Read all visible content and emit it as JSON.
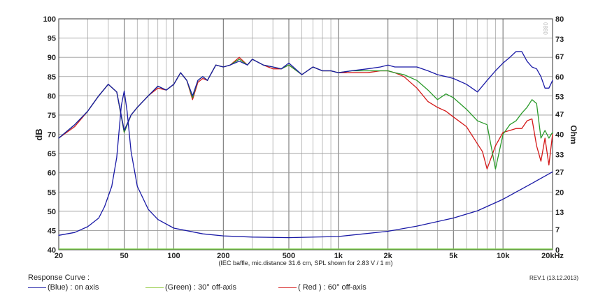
{
  "chart_data": {
    "type": "line",
    "xscale": "log",
    "xlim": [
      20,
      20000
    ],
    "ylim": [
      40,
      100
    ],
    "ylabel": "dB",
    "y2label": "Ohm",
    "y2lim": [
      0,
      80
    ],
    "xlabel": "(IEC baffle, mic.distance 31.6 cm, SPL shown for 2.83 V / 1 m)",
    "x_ticks": [
      20,
      50,
      100,
      200,
      500,
      1000,
      2000,
      5000,
      10000,
      20000
    ],
    "x_tick_labels": [
      "20",
      "50",
      "100",
      "200",
      "500",
      "1k",
      "2k",
      "5k",
      "10k",
      "20kHz"
    ],
    "y_ticks": [
      40,
      45,
      50,
      55,
      60,
      65,
      70,
      75,
      80,
      85,
      90,
      95,
      100
    ],
    "y2_ticks": [
      0,
      7,
      13,
      20,
      27,
      33,
      40,
      47,
      53,
      60,
      67,
      73,
      80
    ],
    "grid": true,
    "watermark": "0880",
    "series": [
      {
        "name": "(Blue) : on axis",
        "color": "#1a1aa6",
        "axis": "dB",
        "x": [
          20,
          25,
          30,
          35,
          40,
          45,
          50,
          55,
          60,
          70,
          80,
          90,
          100,
          110,
          120,
          130,
          140,
          150,
          160,
          180,
          200,
          220,
          250,
          280,
          300,
          350,
          400,
          450,
          500,
          600,
          700,
          800,
          900,
          1000,
          1200,
          1500,
          1800,
          2000,
          2200,
          2500,
          3000,
          3500,
          4000,
          4500,
          5000,
          6000,
          7000,
          8000,
          9000,
          10000,
          11000,
          12000,
          13000,
          14000,
          15000,
          16000,
          17000,
          18000,
          19000,
          20000
        ],
        "y": [
          69,
          72.5,
          76,
          80,
          83,
          81,
          71,
          75,
          77,
          80,
          82.5,
          81.5,
          83,
          86,
          84,
          80,
          84,
          85,
          84,
          88,
          87.5,
          88,
          89,
          88,
          89.5,
          88,
          87.5,
          87,
          88.5,
          85.5,
          87.5,
          86.5,
          86.5,
          86,
          86.5,
          87,
          87.5,
          88,
          87.5,
          87.5,
          87.5,
          86.5,
          85.5,
          85,
          84.5,
          83,
          81,
          84,
          86.5,
          88.5,
          90,
          91.5,
          91.5,
          89,
          87.5,
          87,
          85,
          82,
          82,
          84
        ]
      },
      {
        "name": "(Green) : 30° off-axis",
        "color": "#2a9a2a",
        "axis": "dB",
        "x": [
          20,
          25,
          30,
          35,
          40,
          45,
          50,
          55,
          60,
          70,
          80,
          90,
          100,
          110,
          120,
          130,
          140,
          150,
          160,
          180,
          200,
          220,
          250,
          280,
          300,
          350,
          400,
          450,
          500,
          600,
          700,
          800,
          900,
          1000,
          1200,
          1500,
          1800,
          2000,
          2200,
          2500,
          3000,
          3500,
          4000,
          4500,
          5000,
          6000,
          7000,
          8000,
          9000,
          10000,
          11000,
          12000,
          13000,
          14000,
          15000,
          16000,
          17000,
          18000,
          19000,
          20000
        ],
        "y": [
          69,
          72.5,
          76,
          80,
          83,
          81,
          70.5,
          75,
          77,
          80,
          82.5,
          81.5,
          83,
          86,
          84,
          79.5,
          84,
          85,
          84,
          88,
          87.5,
          88,
          89.5,
          88,
          89.5,
          88,
          87.5,
          87,
          88,
          85.5,
          87.5,
          86.5,
          86.5,
          86,
          86.5,
          86.5,
          86.5,
          86.5,
          86,
          85.5,
          84,
          81.5,
          79,
          80.5,
          79.5,
          76.5,
          73.5,
          72.5,
          61,
          70,
          72.5,
          73.5,
          75.5,
          77,
          79,
          78,
          69,
          71,
          69,
          70.5
        ]
      },
      {
        "name": "( Red ) : 60° off-axis",
        "color": "#d41818",
        "axis": "dB",
        "x": [
          20,
          25,
          30,
          35,
          40,
          45,
          50,
          55,
          60,
          70,
          80,
          90,
          100,
          110,
          120,
          130,
          140,
          150,
          160,
          180,
          200,
          220,
          250,
          280,
          300,
          350,
          400,
          450,
          500,
          600,
          700,
          800,
          900,
          1000,
          1200,
          1500,
          1800,
          2000,
          2200,
          2500,
          3000,
          3500,
          4000,
          4500,
          5000,
          6000,
          7000,
          7500,
          8000,
          9000,
          10000,
          11000,
          12000,
          13000,
          14000,
          15000,
          16000,
          17000,
          18000,
          19000,
          20000
        ],
        "y": [
          69,
          72,
          76,
          80,
          83,
          81,
          70.5,
          75,
          77,
          80,
          82,
          81.5,
          83,
          86,
          84,
          79,
          83.5,
          84.5,
          84,
          88,
          87.5,
          88,
          90,
          88,
          89.5,
          88,
          87,
          87,
          88,
          85.5,
          87.5,
          86.5,
          86.5,
          86,
          86,
          86,
          86.5,
          86.5,
          86,
          85,
          82,
          78.5,
          77,
          76,
          74.5,
          72,
          67.5,
          65.5,
          61,
          67,
          70.5,
          71,
          71.5,
          71.5,
          73.5,
          74,
          67,
          63,
          69,
          62,
          70
        ]
      },
      {
        "name": "impedance",
        "color": "#1a1aa6",
        "axis": "Ohm",
        "x": [
          20,
          25,
          30,
          35,
          38,
          42,
          45,
          48,
          50,
          52,
          55,
          60,
          70,
          80,
          100,
          150,
          200,
          300,
          500,
          1000,
          2000,
          3000,
          5000,
          7000,
          10000,
          15000,
          20000
        ],
        "y": [
          5,
          6,
          8,
          11,
          15,
          22,
          32,
          50,
          55,
          48,
          34,
          22,
          14,
          10.5,
          7.5,
          5.5,
          4.8,
          4.4,
          4.2,
          4.6,
          6.4,
          8.2,
          11,
          13.5,
          17.5,
          23,
          27
        ]
      }
    ],
    "legend": {
      "title": "Response Curve :",
      "items": [
        "(Blue) : on axis",
        "(Green) : 30° off-axis",
        "( Red ) : 60° off-axis"
      ]
    },
    "revision": "REV.1 (13.12.2013)"
  }
}
